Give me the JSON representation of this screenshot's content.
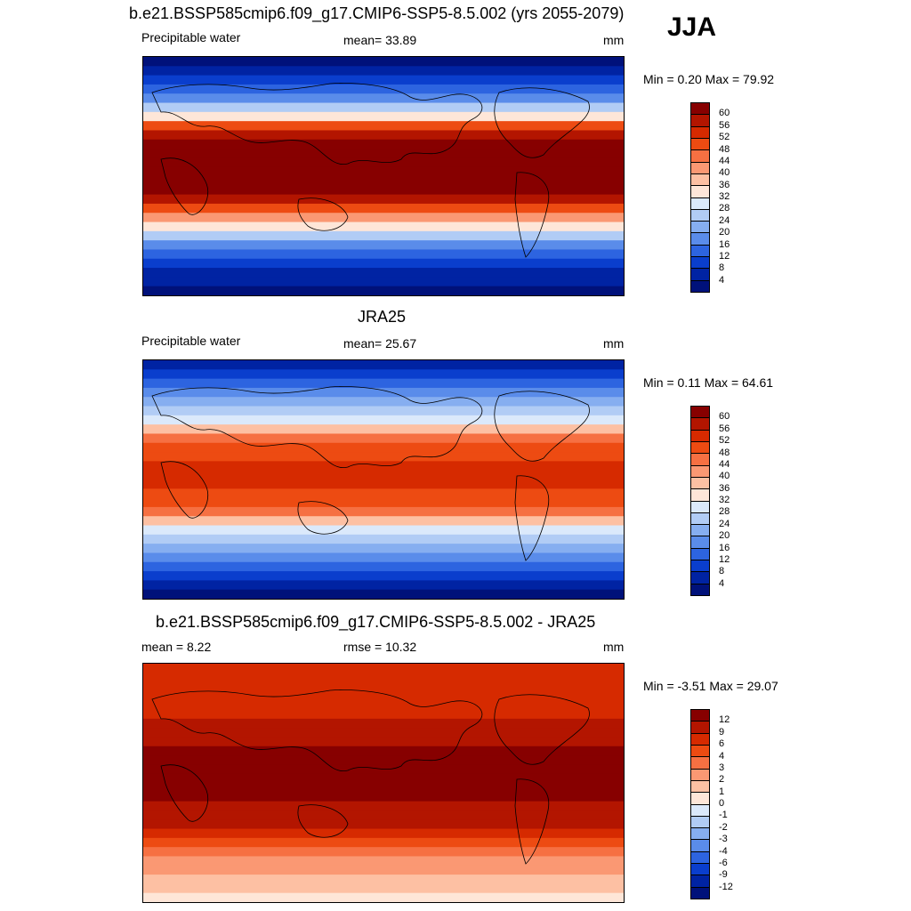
{
  "season": "JJA",
  "units_default": "mm",
  "panels": [
    {
      "title": "b.e21.BSSP585cmip6.f09_g17.CMIP6-SSP5-8.5.002 (yrs 2055-2079)",
      "variable": "Precipitable water",
      "stat_label": "mean=  33.89",
      "units": "mm",
      "minmax": "Min =   0.20 Max =  79.92",
      "colorbar_labels": [
        "60",
        "56",
        "52",
        "48",
        "44",
        "40",
        "36",
        "32",
        "28",
        "24",
        "20",
        "16",
        "12",
        "8",
        "4"
      ],
      "colorbar_colors": [
        "#870000",
        "#b31500",
        "#d62a00",
        "#ed4b12",
        "#f67042",
        "#fa9873",
        "#fdc0a3",
        "#fee6d8",
        "#dbe9fb",
        "#b1ccf5",
        "#86aef0",
        "#5a8cea",
        "#2d64e0",
        "#0a3ecd",
        "#0023a3",
        "#00117a"
      ],
      "field_type": "model"
    },
    {
      "title": "JRA25",
      "variable": "Precipitable water",
      "stat_label": "mean=  25.67",
      "units": "mm",
      "minmax": "Min =   0.11 Max =  64.61",
      "colorbar_labels": [
        "60",
        "56",
        "52",
        "48",
        "44",
        "40",
        "36",
        "32",
        "28",
        "24",
        "20",
        "16",
        "12",
        "8",
        "4"
      ],
      "colorbar_colors": [
        "#870000",
        "#b31500",
        "#d62a00",
        "#ed4b12",
        "#f67042",
        "#fa9873",
        "#fdc0a3",
        "#fee6d8",
        "#dbe9fb",
        "#b1ccf5",
        "#86aef0",
        "#5a8cea",
        "#2d64e0",
        "#0a3ecd",
        "#0023a3",
        "#00117a"
      ],
      "field_type": "obs"
    },
    {
      "title": "b.e21.BSSP585cmip6.f09_g17.CMIP6-SSP5-8.5.002 - JRA25",
      "variable": "mean =   8.22",
      "stat_label": "rmse =  10.32",
      "units": "mm",
      "minmax": "Min =  -3.51 Max =  29.07",
      "colorbar_labels": [
        "12",
        "9",
        "6",
        "4",
        "3",
        "2",
        "1",
        "0",
        "-1",
        "-2",
        "-3",
        "-4",
        "-6",
        "-9",
        "-12"
      ],
      "colorbar_colors": [
        "#870000",
        "#b31500",
        "#d62a00",
        "#ed4b12",
        "#f67042",
        "#fa9873",
        "#fdc0a3",
        "#fee6d8",
        "#dbe9fb",
        "#b1ccf5",
        "#86aef0",
        "#5a8cea",
        "#2d64e0",
        "#0a3ecd",
        "#0023a3",
        "#00117a"
      ],
      "field_type": "diff"
    }
  ]
}
